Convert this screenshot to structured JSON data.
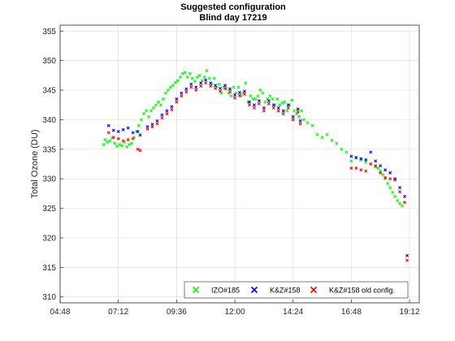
{
  "chart_data": {
    "type": "scatter",
    "title": "Suggested configuration",
    "subtitle": "Blind day 17219",
    "xlabel": "",
    "ylabel": "Total Ozone (DU)",
    "xlim": [
      4.8,
      19.6
    ],
    "ylim": [
      309,
      356
    ],
    "grid": true,
    "legend_position": "bottom-right",
    "xticks": [
      {
        "value": 4.8,
        "label": "04:48"
      },
      {
        "value": 7.2,
        "label": "07:12"
      },
      {
        "value": 9.6,
        "label": "09:36"
      },
      {
        "value": 12.0,
        "label": "12:00"
      },
      {
        "value": 14.4,
        "label": "14:24"
      },
      {
        "value": 16.8,
        "label": "16:48"
      },
      {
        "value": 19.2,
        "label": "19:12"
      }
    ],
    "yticks": [
      310,
      315,
      320,
      325,
      330,
      335,
      340,
      345,
      350,
      355
    ],
    "series": [
      {
        "name": "IZO#185",
        "color": "#00ff00",
        "marker": "x",
        "x": [
          6.6,
          6.65,
          6.75,
          6.85,
          6.95,
          7.05,
          7.15,
          7.25,
          7.35,
          7.45,
          7.55,
          7.65,
          7.75,
          7.85,
          7.95,
          8.05,
          8.15,
          8.25,
          8.35,
          8.45,
          8.55,
          8.65,
          8.75,
          8.85,
          8.95,
          9.05,
          9.15,
          9.25,
          9.35,
          9.45,
          9.55,
          9.65,
          9.75,
          9.85,
          9.95,
          10.05,
          10.15,
          10.25,
          10.35,
          10.45,
          10.55,
          10.65,
          10.75,
          10.85,
          10.95,
          11.05,
          11.15,
          11.25,
          11.35,
          11.45,
          11.55,
          11.65,
          11.75,
          11.85,
          11.95,
          12.05,
          12.15,
          12.25,
          12.35,
          12.45,
          12.55,
          12.65,
          12.75,
          12.85,
          12.95,
          13.05,
          13.15,
          13.25,
          13.35,
          13.45,
          13.55,
          13.65,
          13.75,
          13.85,
          13.95,
          14.05,
          14.15,
          14.25,
          14.35,
          14.45,
          14.55,
          14.65,
          14.75,
          14.85,
          15.0,
          15.2,
          15.4,
          15.6,
          15.8,
          16.0,
          16.2,
          16.4,
          16.6,
          16.8,
          17.0,
          17.2,
          17.4,
          17.6,
          17.8,
          17.9,
          18.0,
          18.1,
          18.2,
          18.3,
          18.4,
          18.5,
          18.6,
          18.7,
          18.8,
          18.9
        ],
        "y": [
          335.8,
          336.6,
          336.2,
          336.4,
          336.9,
          336.0,
          335.5,
          335.8,
          335.6,
          336.2,
          335.4,
          335.8,
          336.0,
          337.0,
          338.0,
          339.0,
          340.0,
          341.0,
          341.5,
          340.5,
          341.5,
          342.0,
          342.5,
          343.0,
          342.5,
          343.5,
          344.5,
          345.0,
          345.5,
          345.8,
          346.3,
          346.6,
          347.2,
          347.8,
          348.0,
          347.2,
          347.8,
          347.0,
          346.5,
          347.2,
          347.5,
          346.6,
          347.2,
          348.3,
          347.0,
          346.0,
          347.0,
          345.5,
          346.0,
          344.5,
          345.5,
          345.2,
          344.5,
          344.0,
          345.5,
          344.5,
          345.5,
          344.0,
          344.5,
          346.2,
          343.0,
          344.0,
          343.5,
          343.5,
          344.0,
          345.0,
          344.5,
          343.0,
          343.5,
          344.0,
          343.5,
          342.5,
          343.5,
          342.5,
          342.8,
          343.0,
          341.5,
          342.5,
          343.3,
          341.5,
          341.0,
          340.5,
          341.5,
          340.0,
          339.5,
          339.0,
          337.5,
          337.0,
          337.5,
          336.5,
          336.0,
          335.0,
          334.5,
          333.0,
          333.5,
          333.2,
          332.8,
          332.5,
          332.0,
          331.8,
          331.3,
          330.7,
          330.0,
          329.2,
          328.5,
          327.7,
          327.0,
          326.3,
          325.8,
          325.4
        ]
      },
      {
        "name": "K&Z#158",
        "color": "#0000ff",
        "marker": "x",
        "x": [
          6.8,
          7.0,
          7.2,
          7.4,
          7.6,
          7.8,
          8.0,
          8.1,
          8.4,
          8.6,
          8.8,
          9.0,
          9.2,
          9.4,
          9.6,
          9.8,
          10.0,
          10.2,
          10.4,
          10.6,
          10.8,
          11.0,
          11.2,
          11.4,
          11.6,
          11.8,
          12.0,
          12.2,
          12.4,
          12.6,
          12.8,
          13.0,
          13.2,
          13.4,
          13.6,
          13.8,
          14.0,
          14.2,
          14.4,
          14.6,
          14.7,
          16.8,
          17.0,
          17.2,
          17.4,
          17.6,
          17.8,
          18.0,
          18.2,
          18.4,
          18.6,
          18.8,
          19.0,
          19.1
        ],
        "y": [
          339.0,
          338.2,
          338.0,
          338.3,
          338.6,
          337.8,
          338.0,
          337.4,
          338.8,
          339.2,
          339.8,
          340.8,
          341.5,
          342.2,
          343.5,
          344.5,
          345.2,
          346.0,
          345.5,
          346.2,
          346.7,
          346.2,
          345.8,
          345.3,
          345.8,
          345.2,
          344.2,
          344.6,
          344.8,
          343.0,
          342.5,
          343.2,
          342.0,
          343.2,
          342.5,
          342.0,
          341.5,
          342.5,
          340.5,
          341.8,
          339.8,
          333.8,
          333.6,
          333.4,
          333.2,
          334.5,
          333.0,
          332.2,
          331.5,
          331.0,
          330.0,
          328.5,
          327.0,
          317.0
        ]
      },
      {
        "name": "K&Z#158 old config.",
        "color": "#ff0000",
        "marker": "x",
        "x": [
          6.8,
          7.0,
          7.2,
          7.4,
          7.6,
          7.8,
          8.0,
          8.1,
          8.4,
          8.6,
          8.8,
          9.0,
          9.2,
          9.4,
          9.6,
          9.8,
          10.0,
          10.2,
          10.4,
          10.6,
          10.8,
          11.0,
          11.2,
          11.4,
          11.6,
          11.8,
          12.0,
          12.2,
          12.4,
          12.6,
          12.8,
          13.0,
          13.2,
          13.4,
          13.6,
          13.8,
          14.0,
          14.2,
          14.4,
          14.6,
          14.7,
          16.8,
          17.0,
          17.2,
          17.4,
          17.6,
          17.8,
          18.0,
          18.2,
          18.4,
          18.6,
          18.8,
          19.0,
          19.1
        ],
        "y": [
          337.8,
          337.0,
          336.8,
          336.4,
          336.6,
          336.8,
          335.0,
          334.8,
          338.4,
          338.8,
          339.3,
          340.3,
          341.0,
          341.7,
          343.0,
          344.0,
          344.7,
          345.5,
          345.0,
          345.7,
          346.2,
          345.7,
          345.3,
          344.8,
          345.3,
          344.7,
          343.7,
          344.1,
          344.3,
          342.5,
          342.0,
          342.7,
          341.5,
          342.7,
          342.0,
          341.5,
          341.0,
          342.0,
          340.0,
          341.3,
          339.3,
          331.8,
          331.8,
          331.5,
          331.3,
          332.5,
          332.2,
          331.0,
          330.2,
          330.0,
          329.8,
          327.8,
          326.0,
          316.2
        ]
      }
    ]
  }
}
